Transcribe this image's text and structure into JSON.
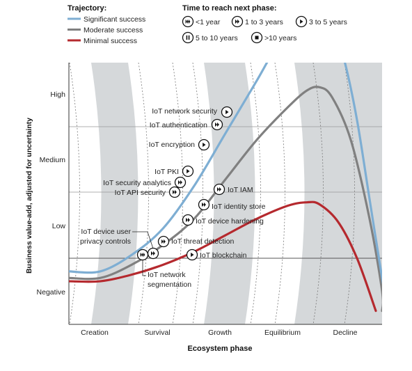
{
  "chart_data": {
    "type": "line",
    "xlabel": "Ecosystem phase",
    "ylabel": "Business value-add, adjusted for uncertainty",
    "categories": [
      "Creation",
      "Survival",
      "Growth",
      "Equilibrium",
      "Decline"
    ],
    "y_ticks": [
      "High",
      "Medium",
      "Low",
      "Negative"
    ],
    "legend": {
      "trajectory_title": "Trajectory:",
      "trajectory_items": [
        {
          "label": "Significant success",
          "color": "#7eaed3"
        },
        {
          "label": "Moderate success",
          "color": "#808080"
        },
        {
          "label": "Minimal success",
          "color": "#b5292e"
        }
      ],
      "time_title": "Time to reach next phase:",
      "time_items": [
        {
          "icon": "fast-forward-3",
          "label": "<1 year"
        },
        {
          "icon": "fast-forward-2",
          "label": "1 to 3 years"
        },
        {
          "icon": "play",
          "label": "3 to 5 years"
        },
        {
          "icon": "pause",
          "label": "5 to 10 years"
        },
        {
          "icon": "stop",
          "label": ">10 years"
        }
      ]
    },
    "series": [
      {
        "name": "Significant success",
        "color": "#7eaed3",
        "points": [
          [
            0.0,
            -0.2
          ],
          [
            0.5,
            -0.2
          ],
          [
            1.0,
            0.05
          ],
          [
            1.5,
            0.45
          ],
          [
            2.0,
            1.1
          ],
          [
            2.5,
            1.9
          ],
          [
            3.0,
            2.7
          ],
          [
            3.3,
            3.2
          ],
          [
            3.6,
            3.6
          ],
          [
            3.8,
            3.75
          ],
          [
            4.0,
            3.8
          ],
          [
            4.2,
            3.6
          ],
          [
            4.4,
            3.0
          ],
          [
            4.6,
            2.1
          ],
          [
            4.8,
            0.9
          ],
          [
            5.0,
            -0.3
          ],
          [
            5.1,
            -0.8
          ]
        ]
      },
      {
        "name": "Moderate success",
        "color": "#808080",
        "points": [
          [
            0.0,
            -0.3
          ],
          [
            0.5,
            -0.3
          ],
          [
            1.0,
            -0.1
          ],
          [
            1.5,
            0.2
          ],
          [
            2.0,
            0.6
          ],
          [
            2.5,
            1.2
          ],
          [
            3.0,
            1.8
          ],
          [
            3.5,
            2.3
          ],
          [
            3.8,
            2.55
          ],
          [
            4.0,
            2.6
          ],
          [
            4.2,
            2.45
          ],
          [
            4.5,
            1.8
          ],
          [
            4.8,
            0.6
          ],
          [
            5.0,
            -0.5
          ],
          [
            5.0,
            -0.8
          ]
        ]
      },
      {
        "name": "Minimal success",
        "color": "#b5292e",
        "points": [
          [
            0.0,
            -0.35
          ],
          [
            0.5,
            -0.35
          ],
          [
            1.0,
            -0.25
          ],
          [
            1.5,
            -0.1
          ],
          [
            2.0,
            0.1
          ],
          [
            2.5,
            0.35
          ],
          [
            3.0,
            0.6
          ],
          [
            3.5,
            0.8
          ],
          [
            3.8,
            0.85
          ],
          [
            4.0,
            0.82
          ],
          [
            4.3,
            0.55
          ],
          [
            4.6,
            0.0
          ],
          [
            4.9,
            -0.8
          ]
        ]
      }
    ],
    "annotations": [
      {
        "label": "IoT network security",
        "icon": "play",
        "x": 2.5,
        "y": 3.0
      },
      {
        "label": "IoT authentication",
        "icon": "fast-forward-2",
        "x": 2.4,
        "y": 2.8
      },
      {
        "label": "IoT encryption",
        "icon": "play",
        "x": 2.2,
        "y": 2.25
      },
      {
        "label": "IoT PKI",
        "icon": "play",
        "x": 1.9,
        "y": 1.6
      },
      {
        "label": "IoT security analytics",
        "icon": "fast-forward-2",
        "x": 1.8,
        "y": 1.4
      },
      {
        "label": "IoT API security",
        "icon": "fast-forward-2",
        "x": 1.75,
        "y": 1.2
      },
      {
        "label": "IoT IAM",
        "icon": "fast-forward-2",
        "x": 2.4,
        "y": 1.2
      },
      {
        "label": "IoT identity store",
        "icon": "fast-forward-2",
        "x": 2.2,
        "y": 0.9
      },
      {
        "label": "IoT device hardening",
        "icon": "fast-forward-2",
        "x": 1.9,
        "y": 0.6
      },
      {
        "label": "IoT device user privacy controls",
        "icon": "fast-forward-2",
        "x": 1.2,
        "y": 0.25
      },
      {
        "label": "IoT threat detection",
        "icon": "fast-forward-2",
        "x": 1.5,
        "y": 0.2
      },
      {
        "label": "IoT blockchain",
        "icon": "play",
        "x": 1.95,
        "y": 0.05
      },
      {
        "label": "IoT network segmentation",
        "icon": "fast-forward-3",
        "x": 1.15,
        "y": 0.05
      }
    ]
  }
}
